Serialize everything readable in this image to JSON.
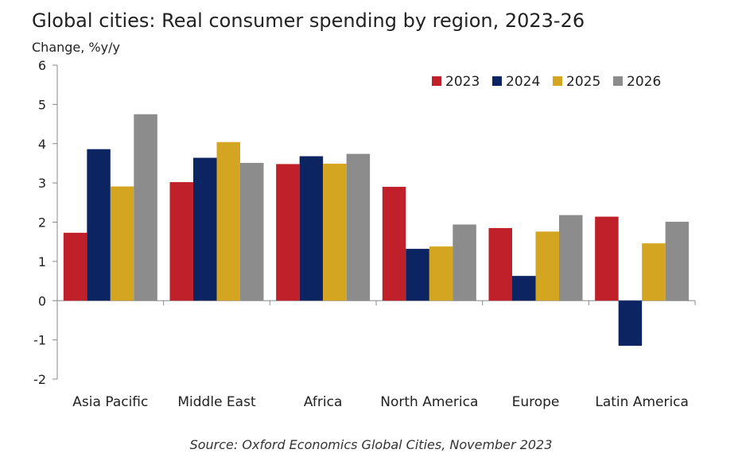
{
  "chart_data": {
    "type": "bar",
    "title": "Global cities: Real consumer spending by region, 2023-26",
    "ylabel": "Change, %y/y",
    "xlabel": "",
    "categories": [
      "Asia Pacific",
      "Middle East",
      "Africa",
      "North America",
      "Europe",
      "Latin America"
    ],
    "series": [
      {
        "name": "2023",
        "color": "#c0202a",
        "values": [
          1.73,
          3.02,
          3.48,
          2.9,
          1.85,
          2.14
        ]
      },
      {
        "name": "2024",
        "color": "#0c2461",
        "values": [
          3.86,
          3.64,
          3.68,
          1.32,
          0.63,
          -1.15
        ]
      },
      {
        "name": "2025",
        "color": "#d4a520",
        "values": [
          2.91,
          4.04,
          3.49,
          1.38,
          1.76,
          1.46
        ]
      },
      {
        "name": "2026",
        "color": "#8c8c8c",
        "values": [
          4.75,
          3.51,
          3.74,
          1.94,
          2.18,
          2.01
        ]
      }
    ],
    "ylim": [
      -2,
      6
    ],
    "yticks": [
      -2,
      -1,
      0,
      1,
      2,
      3,
      4,
      5,
      6
    ],
    "grid": false,
    "legend_position": "top-right"
  },
  "source": "Source: Oxford Economics Global Cities, November 2023"
}
